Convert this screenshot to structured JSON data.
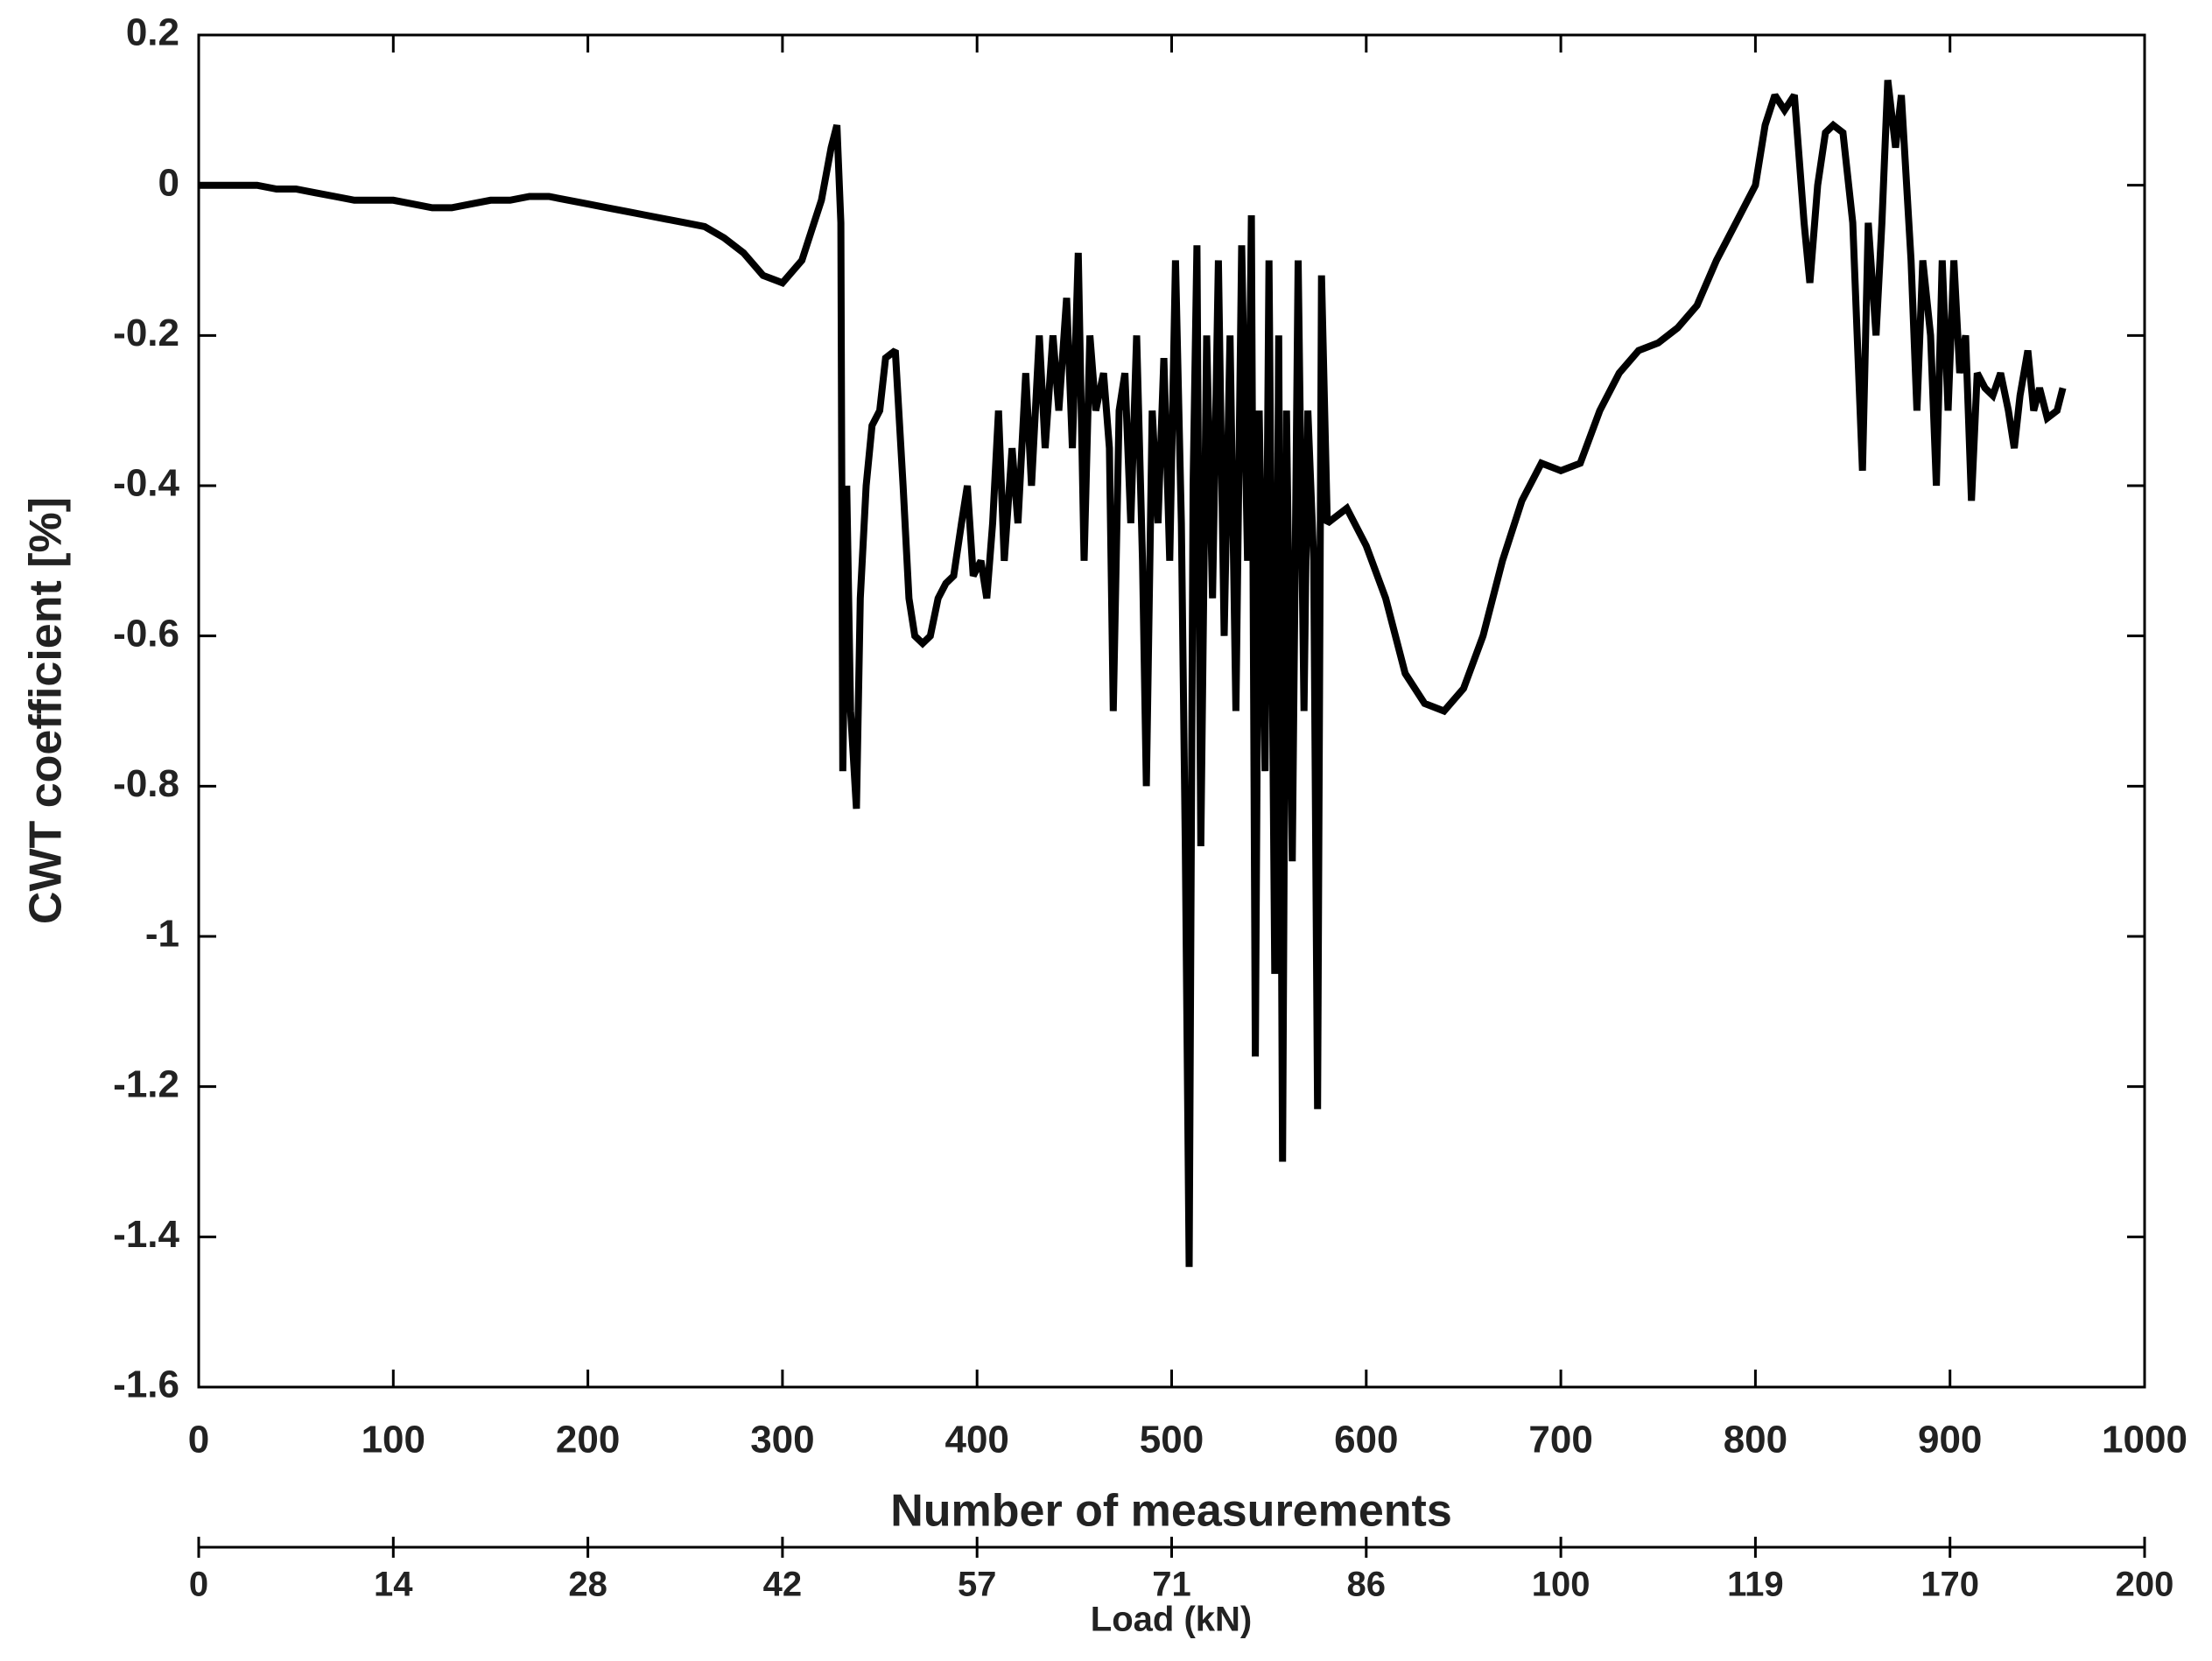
{
  "chart_data": {
    "type": "line",
    "xlabel": "Number of measurements",
    "ylabel": "CWT coefficient [%]",
    "x2label": "Load (kN)",
    "xlim": [
      0,
      1000
    ],
    "xticks": [
      0,
      100,
      200,
      300,
      400,
      500,
      600,
      700,
      800,
      900,
      1000
    ],
    "ylim": [
      -1.6,
      0.2
    ],
    "yticks": [
      0.2,
      0,
      -0.2,
      -0.4,
      -0.6,
      -0.8,
      -1,
      -1.2,
      -1.4,
      -1.6
    ],
    "x2ticks": [
      0,
      14,
      28,
      42,
      57,
      71,
      86,
      100,
      119,
      170,
      200
    ],
    "grid": false,
    "series": [
      {
        "color": "#000000",
        "x": [
          0,
          10,
          20,
          30,
          40,
          50,
          60,
          70,
          80,
          90,
          100,
          110,
          120,
          130,
          140,
          150,
          160,
          170,
          180,
          190,
          200,
          210,
          220,
          230,
          240,
          250,
          260,
          270,
          280,
          290,
          300,
          310,
          315,
          320,
          325,
          328,
          330,
          331,
          333,
          335,
          338,
          340,
          343,
          346,
          350,
          353,
          358,
          362,
          365,
          368,
          372,
          376,
          380,
          384,
          388,
          392,
          395,
          398,
          402,
          405,
          408,
          411,
          414,
          418,
          421,
          425,
          428,
          432,
          435,
          439,
          442,
          446,
          449,
          452,
          455,
          458,
          461,
          465,
          468,
          470,
          473,
          476,
          479,
          482,
          485,
          487,
          490,
          493,
          496,
          499,
          502,
          505,
          507,
          509,
          511,
          513,
          515,
          518,
          521,
          524,
          527,
          530,
          533,
          536,
          539,
          541,
          543,
          545,
          548,
          550,
          553,
          555,
          557,
          559,
          562,
          565,
          568,
          570,
          573,
          575,
          577,
          580,
          590,
          600,
          610,
          620,
          630,
          640,
          650,
          660,
          670,
          680,
          690,
          700,
          710,
          720,
          730,
          740,
          750,
          760,
          770,
          780,
          790,
          800,
          805,
          810,
          815,
          820,
          825,
          828,
          832,
          836,
          840,
          845,
          850,
          855,
          858,
          862,
          865,
          868,
          872,
          875,
          880,
          883,
          886,
          890,
          893,
          896,
          899,
          902,
          905,
          908,
          911,
          914,
          918,
          922,
          926,
          930,
          933,
          936,
          940,
          943,
          946,
          950,
          955,
          958
        ],
        "values": [
          0,
          0,
          0,
          0,
          -0.005,
          -0.005,
          -0.01,
          -0.015,
          -0.02,
          -0.02,
          -0.02,
          -0.025,
          -0.03,
          -0.03,
          -0.025,
          -0.02,
          -0.02,
          -0.015,
          -0.015,
          -0.02,
          -0.025,
          -0.03,
          -0.035,
          -0.04,
          -0.045,
          -0.05,
          -0.055,
          -0.07,
          -0.09,
          -0.12,
          -0.13,
          -0.1,
          -0.06,
          -0.02,
          0.05,
          0.08,
          -0.05,
          -0.78,
          -0.4,
          -0.7,
          -0.83,
          -0.55,
          -0.4,
          -0.32,
          -0.3,
          -0.23,
          -0.22,
          -0.4,
          -0.55,
          -0.6,
          -0.61,
          -0.6,
          -0.55,
          -0.53,
          -0.52,
          -0.45,
          -0.4,
          -0.52,
          -0.5,
          -0.55,
          -0.45,
          -0.3,
          -0.5,
          -0.35,
          -0.45,
          -0.25,
          -0.4,
          -0.2,
          -0.35,
          -0.2,
          -0.3,
          -0.15,
          -0.35,
          -0.09,
          -0.5,
          -0.2,
          -0.3,
          -0.25,
          -0.35,
          -0.7,
          -0.3,
          -0.25,
          -0.45,
          -0.2,
          -0.5,
          -0.8,
          -0.3,
          -0.45,
          -0.23,
          -0.5,
          -0.1,
          -0.45,
          -0.88,
          -1.44,
          -0.4,
          -0.08,
          -0.88,
          -0.2,
          -0.55,
          -0.1,
          -0.6,
          -0.2,
          -0.7,
          -0.08,
          -0.5,
          -0.04,
          -1.16,
          -0.3,
          -0.78,
          -0.1,
          -1.05,
          -0.2,
          -1.3,
          -0.3,
          -0.9,
          -0.1,
          -0.7,
          -0.3,
          -0.5,
          -1.23,
          -0.12,
          -0.45,
          -0.43,
          -0.48,
          -0.55,
          -0.65,
          -0.69,
          -0.7,
          -0.67,
          -0.6,
          -0.5,
          -0.42,
          -0.37,
          -0.38,
          -0.37,
          -0.3,
          -0.25,
          -0.22,
          -0.21,
          -0.19,
          -0.16,
          -0.1,
          -0.05,
          0,
          0.08,
          0.12,
          0.1,
          0.12,
          -0.05,
          -0.13,
          0,
          0.07,
          0.08,
          0.07,
          -0.05,
          -0.38,
          -0.05,
          -0.2,
          -0.05,
          0.14,
          0.05,
          0.12,
          -0.1,
          -0.3,
          -0.1,
          -0.2,
          -0.4,
          -0.1,
          -0.3,
          -0.1,
          -0.25,
          -0.2,
          -0.42,
          -0.25,
          -0.27,
          -0.28,
          -0.25,
          -0.3,
          -0.35,
          -0.28,
          -0.22,
          -0.3,
          -0.27,
          -0.31,
          -0.3,
          -0.27
        ]
      }
    ]
  }
}
